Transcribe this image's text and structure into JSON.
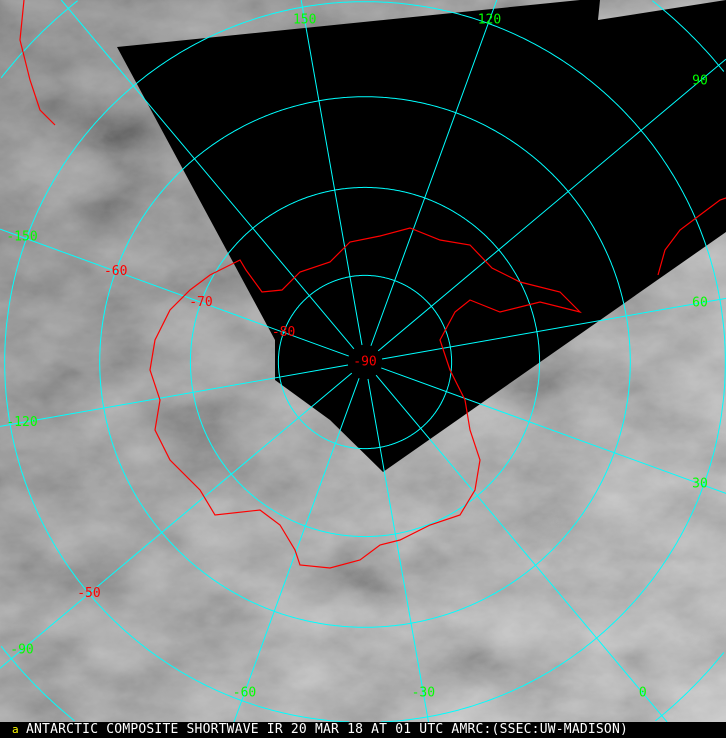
{
  "caption": "ANTARCTIC COMPOSITE SHORTWAVE IR 20 MAR 18 AT 01 UTC AMRC:(SSEC:UW-MADISON)",
  "caption_mark": "a",
  "longitude_labels": [
    {
      "lon": 150,
      "text": "150"
    },
    {
      "lon": 120,
      "text": "120"
    },
    {
      "lon": 90,
      "text": "90"
    },
    {
      "lon": 60,
      "text": "60"
    },
    {
      "lon": 30,
      "text": "30"
    },
    {
      "lon": 0,
      "text": "0"
    },
    {
      "lon": -30,
      "text": "-30"
    },
    {
      "lon": -60,
      "text": "-60"
    },
    {
      "lon": -90,
      "text": "-90"
    },
    {
      "lon": -120,
      "text": "-120"
    },
    {
      "lon": -150,
      "text": "-150"
    }
  ],
  "latitude_labels": [
    {
      "lat": -50,
      "text": "-50"
    },
    {
      "lat": -60,
      "text": "-60"
    },
    {
      "lat": -70,
      "text": "-70"
    },
    {
      "lat": -80,
      "text": "-80"
    },
    {
      "lat": -90,
      "text": "-90"
    }
  ],
  "colors": {
    "grid": "#00ffff",
    "coastline": "#ff0000",
    "longitude_label": "#00ff00",
    "latitude_label": "#ff0000",
    "no_data": "#000000",
    "caption_text": "#ffffff"
  }
}
